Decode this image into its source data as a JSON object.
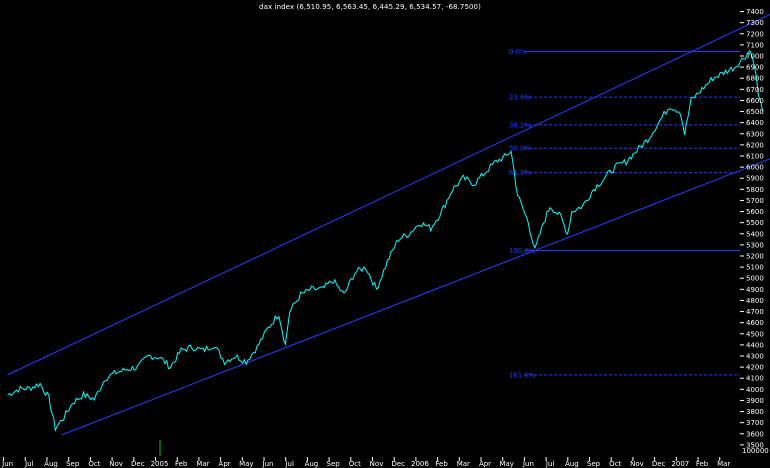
{
  "header": {
    "title": "dax index (6,510.95, 6,563.45, 6,445.29, 6,534.57, -68.7500)"
  },
  "colors": {
    "background": "#000000",
    "price_line": "#00ffff",
    "channel": "#2040ff",
    "fib": "#2040ff",
    "axis_text": "#ffffff",
    "volume": "#00c800"
  },
  "chart_data": {
    "type": "line",
    "title": "dax index (6,510.95, 6,563.45, 6,445.29, 6,534.57, -68.7500)",
    "ylim": [
      3400,
      7450
    ],
    "y_ticks": [
      3500,
      3600,
      3700,
      3800,
      3900,
      4000,
      4100,
      4200,
      4300,
      4400,
      4500,
      4600,
      4700,
      4800,
      4900,
      5000,
      5100,
      5200,
      5300,
      5400,
      5500,
      5600,
      5700,
      5800,
      5900,
      6000,
      6100,
      6200,
      6300,
      6400,
      6500,
      6600,
      6700,
      6800,
      6900,
      7000,
      7100,
      7200,
      7300,
      7400
    ],
    "y_tick_labels": [
      "3500",
      "3600",
      "3700",
      "3800",
      "3900",
      "4000",
      "4100",
      "4200",
      "4300",
      "4400",
      "4500",
      "4600",
      "4700",
      "4800",
      "4900",
      "5000",
      "5100",
      "5200",
      "5300",
      "5400",
      "5500",
      "5600",
      "5700",
      "5800",
      "5900",
      "6000",
      "6100",
      "6200",
      "6300",
      "6400",
      "6500",
      "6600",
      "6700",
      "6800",
      "6900",
      "7000",
      "7100",
      "7200",
      "7300",
      "7400"
    ],
    "volume_tick_label": "100000",
    "x_tick_labels": [
      "Jun",
      "Jul",
      "Aug",
      "Sep",
      "Oct",
      "Nov",
      "Dec",
      "2005",
      "Feb",
      "Mar",
      "Apr",
      "May",
      "Jun",
      "Jul",
      "Aug",
      "Sep",
      "Oct",
      "Nov",
      "Dec",
      "2006",
      "Feb",
      "Mar",
      "Apr",
      "May",
      "Jun",
      "Jul",
      "Aug",
      "Sep",
      "Oct",
      "Nov",
      "Dec",
      "2007",
      "Feb",
      "Mar"
    ],
    "series": [
      {
        "values": [
          [
            0,
            3950
          ],
          [
            0.5,
            4000
          ],
          [
            1,
            4010
          ],
          [
            1.5,
            4050
          ],
          [
            1.9,
            3920
          ],
          [
            2.2,
            3650
          ],
          [
            2.6,
            3750
          ],
          [
            3,
            3880
          ],
          [
            3.5,
            3950
          ],
          [
            4,
            3910
          ],
          [
            4.5,
            4100
          ],
          [
            5,
            4150
          ],
          [
            5.5,
            4180
          ],
          [
            6,
            4200
          ],
          [
            6.5,
            4300
          ],
          [
            7,
            4290
          ],
          [
            7.5,
            4200
          ],
          [
            8,
            4350
          ],
          [
            8.5,
            4380
          ],
          [
            9,
            4350
          ],
          [
            9.5,
            4400
          ],
          [
            10,
            4250
          ],
          [
            10.5,
            4300
          ],
          [
            11,
            4250
          ],
          [
            11.5,
            4380
          ],
          [
            12,
            4550
          ],
          [
            12.5,
            4680
          ],
          [
            12.8,
            4400
          ],
          [
            13,
            4700
          ],
          [
            13.5,
            4850
          ],
          [
            14,
            4900
          ],
          [
            14.5,
            4900
          ],
          [
            15,
            4980
          ],
          [
            15.5,
            4850
          ],
          [
            16,
            5050
          ],
          [
            16.5,
            5100
          ],
          [
            17,
            4900
          ],
          [
            17.5,
            5150
          ],
          [
            18,
            5350
          ],
          [
            18.5,
            5400
          ],
          [
            19,
            5500
          ],
          [
            19.5,
            5450
          ],
          [
            20,
            5600
          ],
          [
            20.5,
            5800
          ],
          [
            21,
            5900
          ],
          [
            21.5,
            5850
          ],
          [
            22,
            5950
          ],
          [
            22.5,
            6050
          ],
          [
            23,
            6100
          ],
          [
            23.2,
            6150
          ],
          [
            23.5,
            5750
          ],
          [
            24,
            5500
          ],
          [
            24.3,
            5250
          ],
          [
            24.7,
            5500
          ],
          [
            25,
            5650
          ],
          [
            25.5,
            5550
          ],
          [
            25.8,
            5400
          ],
          [
            26,
            5600
          ],
          [
            26.5,
            5650
          ],
          [
            27,
            5800
          ],
          [
            27.5,
            5900
          ],
          [
            28,
            6000
          ],
          [
            28.5,
            6050
          ],
          [
            29,
            6150
          ],
          [
            29.5,
            6250
          ],
          [
            30,
            6400
          ],
          [
            30.5,
            6550
          ],
          [
            31,
            6500
          ],
          [
            31.2,
            6300
          ],
          [
            31.5,
            6600
          ],
          [
            32,
            6700
          ],
          [
            32.5,
            6800
          ],
          [
            33,
            6850
          ],
          [
            33.5,
            6900
          ],
          [
            34,
            7000
          ],
          [
            34.2,
            7050
          ],
          [
            34.4,
            6950
          ],
          [
            34.6,
            6650
          ],
          [
            34.8,
            6500
          ]
        ]
      }
    ],
    "channel_lines": [
      {
        "from": [
          0,
          4130
        ],
        "to": [
          35.2,
          7380
        ]
      },
      {
        "from": [
          2.5,
          3590
        ],
        "to": [
          35.2,
          6080
        ]
      }
    ],
    "fibonacci_levels": [
      {
        "label": "0.0%",
        "value": 7040
      },
      {
        "label": "23.6%",
        "value": 6630
      },
      {
        "label": "38.2%",
        "value": 6380
      },
      {
        "label": "50.0%",
        "value": 6170
      },
      {
        "label": "61.8%",
        "value": 5950
      },
      {
        "label": "100.0%",
        "value": 5250
      },
      {
        "label": "161.8%",
        "value": 4130
      }
    ],
    "grid": false
  }
}
